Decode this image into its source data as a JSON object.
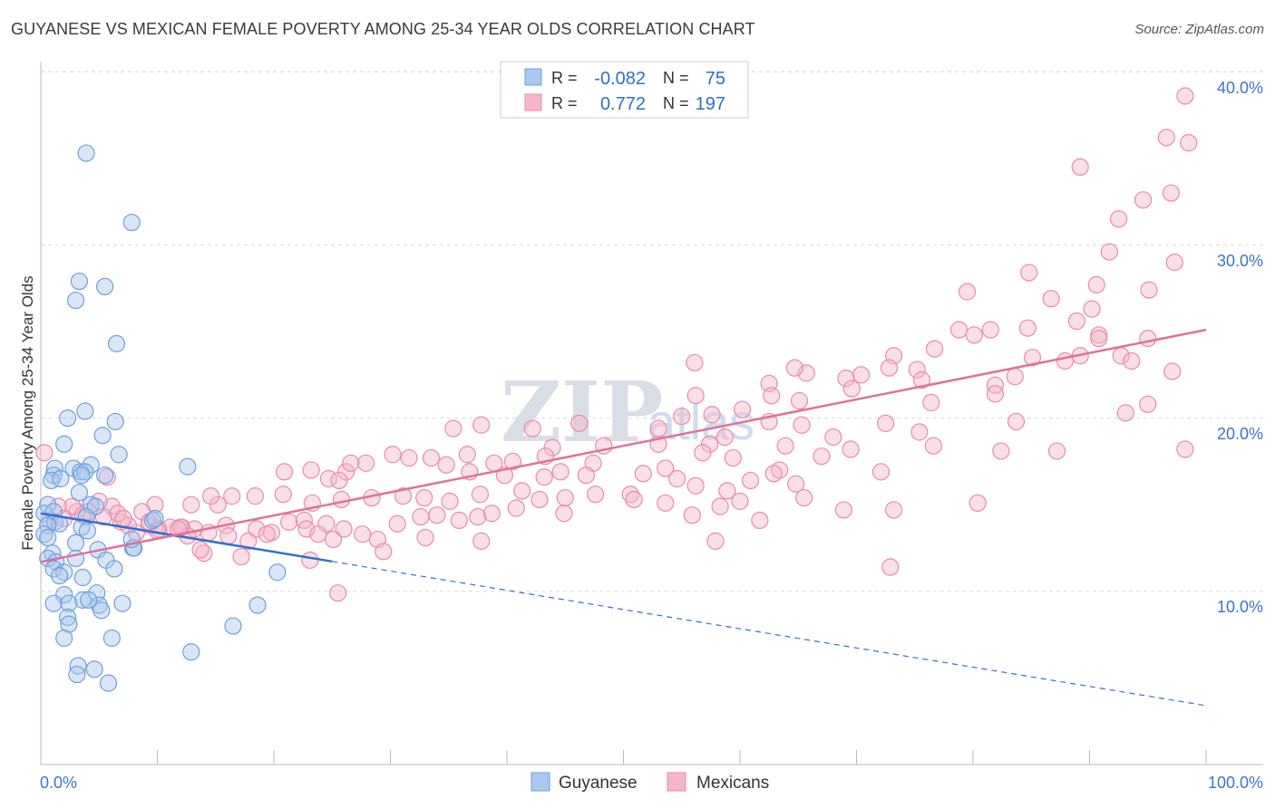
{
  "header": {
    "title": "GUYANESE VS MEXICAN FEMALE POVERTY AMONG 25-34 YEAR OLDS CORRELATION CHART",
    "source": "Source: ZipAtlas.com"
  },
  "watermark": {
    "zip": "ZIP",
    "atlas": "atlas"
  },
  "legend": {
    "rows": [
      {
        "r_label": "R =",
        "r_value": "-0.082",
        "n_label": "N =",
        "n_value": "75"
      },
      {
        "r_label": "R =",
        "r_value": "0.772",
        "n_label": "N =",
        "n_value": "197"
      }
    ]
  },
  "bottom_legend": {
    "series1": "Guyanese",
    "series2": "Mexicans"
  },
  "colors": {
    "guyanese_fill": "#a9c8f0",
    "guyanese_stroke": "#6f9fd8",
    "guyanese_line": "#2f6fcf",
    "mexicans_fill": "#f6b6ca",
    "mexicans_stroke": "#e88aa9",
    "mexicans_line": "#e0709a",
    "grid": "#d8d8d8",
    "tick_label": "#3b74c7"
  },
  "chart_data": {
    "type": "scatter",
    "title": "GUYANESE VS MEXICAN FEMALE POVERTY AMONG 25-34 YEAR OLDS CORRELATION CHART",
    "xlabel": "",
    "ylabel": "Female Poverty Among 25-34 Year Olds",
    "xlim": [
      0,
      100
    ],
    "ylim": [
      0,
      42
    ],
    "x_tick_labels": [
      "0.0%",
      "100.0%"
    ],
    "y_ticks": [
      10,
      20,
      30,
      40
    ],
    "y_tick_labels": [
      "10.0%",
      "20.0%",
      "30.0%",
      "40.0%"
    ],
    "grid": true,
    "legend_position": "top-center",
    "series": [
      {
        "name": "Guyanese",
        "R": -0.082,
        "N": 75,
        "trend": {
          "x0": 0,
          "y0": 14.5,
          "x1": 100,
          "y1": 3.4,
          "solid_until_x": 25
        },
        "points": [
          [
            3.9,
            35.3
          ],
          [
            7.8,
            31.3
          ],
          [
            3.3,
            27.9
          ],
          [
            5.5,
            27.6
          ],
          [
            3.0,
            26.8
          ],
          [
            6.5,
            24.3
          ],
          [
            3.8,
            20.4
          ],
          [
            2.3,
            20.0
          ],
          [
            6.4,
            19.8
          ],
          [
            5.3,
            19.0
          ],
          [
            2.0,
            18.5
          ],
          [
            6.7,
            17.9
          ],
          [
            12.6,
            17.2
          ],
          [
            4.3,
            17.3
          ],
          [
            1.2,
            17.1
          ],
          [
            2.8,
            17.1
          ],
          [
            3.4,
            16.9
          ],
          [
            3.8,
            16.9
          ],
          [
            5.5,
            16.7
          ],
          [
            1.1,
            16.7
          ],
          [
            0.9,
            16.4
          ],
          [
            1.7,
            16.5
          ],
          [
            3.5,
            16.7
          ],
          [
            3.3,
            15.7
          ],
          [
            4.3,
            15.0
          ],
          [
            4.7,
            14.9
          ],
          [
            0.6,
            15.0
          ],
          [
            0.3,
            14.5
          ],
          [
            1.1,
            14.6
          ],
          [
            3.9,
            14.3
          ],
          [
            9.6,
            14.1
          ],
          [
            1.2,
            14.0
          ],
          [
            1.6,
            13.9
          ],
          [
            0.6,
            13.8
          ],
          [
            3.5,
            13.7
          ],
          [
            4.0,
            13.5
          ],
          [
            0.3,
            13.3
          ],
          [
            0.6,
            13.1
          ],
          [
            3.0,
            12.8
          ],
          [
            4.9,
            12.4
          ],
          [
            7.9,
            12.5
          ],
          [
            1.0,
            12.2
          ],
          [
            0.6,
            11.9
          ],
          [
            3.0,
            11.9
          ],
          [
            5.6,
            11.8
          ],
          [
            1.3,
            11.7
          ],
          [
            6.3,
            11.3
          ],
          [
            1.1,
            11.3
          ],
          [
            2.0,
            11.1
          ],
          [
            1.6,
            10.9
          ],
          [
            3.6,
            10.8
          ],
          [
            4.8,
            9.9
          ],
          [
            2.0,
            9.8
          ],
          [
            20.3,
            11.1
          ],
          [
            3.6,
            9.5
          ],
          [
            5.0,
            9.2
          ],
          [
            1.1,
            9.3
          ],
          [
            2.4,
            9.3
          ],
          [
            7.0,
            9.3
          ],
          [
            4.1,
            9.5
          ],
          [
            5.2,
            8.9
          ],
          [
            2.3,
            8.5
          ],
          [
            2.4,
            8.1
          ],
          [
            16.5,
            8.0
          ],
          [
            18.6,
            9.2
          ],
          [
            2.0,
            7.3
          ],
          [
            6.1,
            7.3
          ],
          [
            12.9,
            6.5
          ],
          [
            3.2,
            5.7
          ],
          [
            4.6,
            5.5
          ],
          [
            3.1,
            5.2
          ],
          [
            5.8,
            4.7
          ],
          [
            9.8,
            14.2
          ],
          [
            8.0,
            12.5
          ],
          [
            7.8,
            13.0
          ]
        ]
      },
      {
        "name": "Mexicans",
        "R": 0.772,
        "N": 197,
        "trend": {
          "x0": 0,
          "y0": 11.7,
          "x1": 100,
          "y1": 25.1
        },
        "points": [
          [
            98.2,
            38.6
          ],
          [
            96.6,
            36.2
          ],
          [
            98.5,
            35.9
          ],
          [
            89.2,
            34.5
          ],
          [
            97.0,
            33.0
          ],
          [
            94.6,
            32.6
          ],
          [
            92.5,
            31.5
          ],
          [
            91.7,
            29.6
          ],
          [
            97.3,
            29.0
          ],
          [
            84.8,
            28.4
          ],
          [
            90.6,
            27.7
          ],
          [
            95.1,
            27.4
          ],
          [
            79.5,
            27.3
          ],
          [
            86.7,
            26.9
          ],
          [
            90.2,
            26.3
          ],
          [
            88.9,
            25.6
          ],
          [
            84.7,
            25.2
          ],
          [
            90.8,
            24.8
          ],
          [
            81.5,
            25.1
          ],
          [
            78.8,
            25.1
          ],
          [
            80.1,
            24.8
          ],
          [
            95.0,
            24.6
          ],
          [
            90.8,
            24.6
          ],
          [
            76.7,
            24.0
          ],
          [
            92.7,
            23.6
          ],
          [
            89.2,
            23.6
          ],
          [
            87.9,
            23.3
          ],
          [
            85.1,
            23.5
          ],
          [
            75.2,
            22.8
          ],
          [
            73.2,
            23.6
          ],
          [
            75.6,
            22.2
          ],
          [
            93.6,
            23.3
          ],
          [
            97.1,
            22.7
          ],
          [
            83.6,
            22.4
          ],
          [
            81.9,
            21.9
          ],
          [
            72.8,
            22.9
          ],
          [
            70.4,
            22.5
          ],
          [
            69.1,
            22.3
          ],
          [
            65.7,
            22.6
          ],
          [
            64.7,
            22.9
          ],
          [
            62.5,
            22.0
          ],
          [
            56.1,
            23.2
          ],
          [
            56.2,
            21.3
          ],
          [
            62.7,
            21.3
          ],
          [
            81.9,
            21.4
          ],
          [
            69.6,
            21.7
          ],
          [
            65.1,
            21.0
          ],
          [
            60.2,
            20.5
          ],
          [
            95.0,
            20.8
          ],
          [
            76.4,
            20.9
          ],
          [
            93.1,
            20.3
          ],
          [
            57.6,
            20.2
          ],
          [
            55.0,
            20.1
          ],
          [
            62.5,
            19.8
          ],
          [
            83.7,
            19.8
          ],
          [
            65.3,
            19.6
          ],
          [
            72.5,
            19.7
          ],
          [
            75.4,
            19.2
          ],
          [
            68.0,
            18.9
          ],
          [
            46.2,
            19.7
          ],
          [
            42.2,
            19.4
          ],
          [
            35.4,
            19.4
          ],
          [
            37.8,
            19.6
          ],
          [
            43.9,
            18.3
          ],
          [
            48.3,
            18.4
          ],
          [
            53.0,
            18.5
          ],
          [
            57.4,
            18.5
          ],
          [
            58.7,
            18.9
          ],
          [
            63.9,
            18.4
          ],
          [
            69.5,
            18.2
          ],
          [
            76.6,
            18.4
          ],
          [
            82.4,
            18.1
          ],
          [
            87.2,
            18.1
          ],
          [
            98.2,
            18.2
          ],
          [
            56.8,
            18.0
          ],
          [
            59.4,
            17.7
          ],
          [
            63.4,
            17.0
          ],
          [
            67.0,
            17.8
          ],
          [
            47.4,
            17.4
          ],
          [
            43.3,
            17.8
          ],
          [
            36.6,
            17.9
          ],
          [
            38.9,
            17.4
          ],
          [
            44.6,
            16.9
          ],
          [
            40.5,
            17.5
          ],
          [
            31.6,
            17.7
          ],
          [
            30.2,
            17.9
          ],
          [
            27.9,
            17.4
          ],
          [
            26.2,
            16.9
          ],
          [
            23.2,
            17.0
          ],
          [
            20.9,
            16.9
          ],
          [
            24.7,
            16.5
          ],
          [
            25.6,
            16.4
          ],
          [
            26.6,
            17.4
          ],
          [
            33.5,
            17.7
          ],
          [
            34.8,
            17.3
          ],
          [
            36.8,
            16.9
          ],
          [
            39.8,
            16.7
          ],
          [
            43.2,
            16.6
          ],
          [
            46.8,
            16.7
          ],
          [
            51.7,
            16.8
          ],
          [
            53.6,
            17.1
          ],
          [
            54.6,
            16.5
          ],
          [
            56.2,
            16.1
          ],
          [
            60.9,
            16.4
          ],
          [
            62.9,
            16.8
          ],
          [
            64.8,
            16.2
          ],
          [
            72.1,
            16.9
          ],
          [
            58.9,
            15.8
          ],
          [
            50.6,
            15.6
          ],
          [
            47.6,
            15.6
          ],
          [
            45.0,
            15.4
          ],
          [
            41.3,
            15.8
          ],
          [
            37.7,
            15.6
          ],
          [
            35.1,
            15.2
          ],
          [
            32.9,
            15.4
          ],
          [
            31.1,
            15.5
          ],
          [
            28.4,
            15.4
          ],
          [
            25.8,
            15.3
          ],
          [
            23.3,
            15.1
          ],
          [
            20.8,
            15.6
          ],
          [
            18.4,
            15.5
          ],
          [
            16.4,
            15.5
          ],
          [
            15.2,
            15.0
          ],
          [
            14.6,
            15.5
          ],
          [
            12.9,
            15.0
          ],
          [
            9.8,
            15.0
          ],
          [
            8.7,
            14.6
          ],
          [
            6.1,
            14.9
          ],
          [
            5.0,
            15.2
          ],
          [
            4.1,
            14.6
          ],
          [
            3.1,
            14.6
          ],
          [
            2.7,
            14.9
          ],
          [
            1.5,
            14.9
          ],
          [
            0.8,
            14.1
          ],
          [
            0.3,
            18.0
          ],
          [
            2.0,
            14.2
          ],
          [
            3.6,
            14.4
          ],
          [
            5.4,
            14.3
          ],
          [
            6.9,
            14.0
          ],
          [
            9.3,
            13.8
          ],
          [
            11.1,
            13.7
          ],
          [
            12.1,
            13.7
          ],
          [
            13.2,
            13.6
          ],
          [
            14.4,
            13.4
          ],
          [
            15.9,
            13.8
          ],
          [
            18.5,
            13.6
          ],
          [
            19.8,
            13.4
          ],
          [
            21.3,
            14.0
          ],
          [
            22.6,
            14.1
          ],
          [
            24.5,
            13.9
          ],
          [
            26.0,
            13.6
          ],
          [
            28.9,
            13.0
          ],
          [
            30.6,
            13.9
          ],
          [
            32.6,
            14.3
          ],
          [
            34.0,
            14.4
          ],
          [
            35.9,
            14.1
          ],
          [
            37.5,
            14.3
          ],
          [
            38.7,
            14.5
          ],
          [
            40.8,
            14.8
          ],
          [
            42.8,
            15.3
          ],
          [
            44.9,
            14.5
          ],
          [
            50.9,
            15.3
          ],
          [
            53.6,
            15.1
          ],
          [
            55.9,
            14.4
          ],
          [
            58.3,
            14.9
          ],
          [
            60.0,
            15.2
          ],
          [
            61.7,
            14.1
          ],
          [
            65.5,
            15.4
          ],
          [
            68.9,
            14.7
          ],
          [
            73.2,
            14.7
          ],
          [
            80.4,
            15.1
          ],
          [
            8.2,
            13.4
          ],
          [
            10.1,
            13.6
          ],
          [
            12.6,
            13.2
          ],
          [
            16.1,
            13.2
          ],
          [
            17.8,
            12.9
          ],
          [
            19.4,
            13.3
          ],
          [
            22.8,
            13.6
          ],
          [
            23.8,
            13.3
          ],
          [
            25.1,
            13.0
          ],
          [
            27.6,
            13.3
          ],
          [
            29.4,
            12.3
          ],
          [
            33.0,
            13.1
          ],
          [
            37.8,
            12.9
          ],
          [
            57.9,
            12.9
          ],
          [
            14.0,
            12.2
          ],
          [
            17.2,
            12.0
          ],
          [
            23.1,
            11.8
          ],
          [
            72.9,
            11.4
          ],
          [
            25.5,
            9.9
          ],
          [
            13.7,
            12.4
          ],
          [
            12.0,
            13.7
          ],
          [
            10.0,
            13.5
          ],
          [
            11.8,
            13.6
          ],
          [
            9.3,
            14.0
          ],
          [
            7.5,
            13.8
          ],
          [
            6.6,
            14.5
          ],
          [
            7.1,
            14.2
          ],
          [
            5.7,
            16.6
          ],
          [
            53.0,
            19.4
          ]
        ]
      }
    ]
  }
}
